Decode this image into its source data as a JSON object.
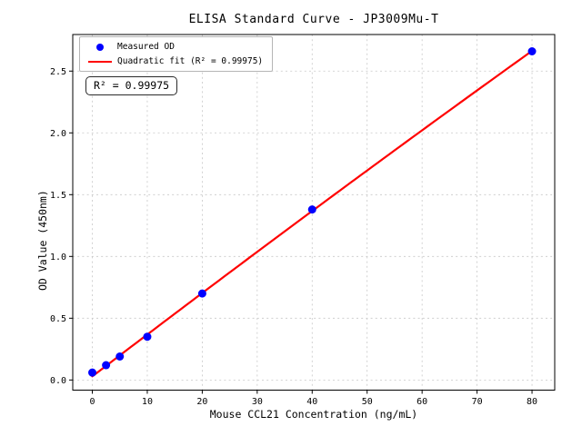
{
  "chart": {
    "title": "ELISA Standard Curve - JP3009Mu-T",
    "xlabel": "Mouse CCL21 Concentration (ng/mL)",
    "ylabel": "OD Value (450nm)",
    "annotation": "R² = 0.99975",
    "legend": {
      "position": "upper left",
      "entries": [
        {
          "label": "Measured OD",
          "marker": "dot",
          "color": "#0000ff"
        },
        {
          "label": "Quadratic fit (R² = 0.99975)",
          "marker": "line",
          "color": "#ff0000"
        }
      ]
    }
  },
  "chart_data": {
    "type": "scatter",
    "title": "ELISA Standard Curve - JP3009Mu-T",
    "xlabel": "Mouse CCL21 Concentration (ng/mL)",
    "ylabel": "OD Value (450nm)",
    "xlim": [
      -3.56,
      84.13
    ],
    "ylim": [
      -0.082,
      2.796
    ],
    "x_ticks": [
      0,
      10,
      20,
      30,
      40,
      50,
      60,
      70,
      80
    ],
    "x_tick_labels": [
      "0",
      "10",
      "20",
      "30",
      "40",
      "50",
      "60",
      "70",
      "80"
    ],
    "y_ticks": [
      0.0,
      0.5,
      1.0,
      1.5,
      2.0,
      2.5
    ],
    "y_tick_labels": [
      "0.0",
      "0.5",
      "1.0",
      "1.5",
      "2.0",
      "2.5"
    ],
    "grid": true,
    "series": [
      {
        "name": "Measured OD",
        "type": "scatter",
        "color": "#0000ff",
        "points": [
          {
            "x": 0,
            "y": 0.06
          },
          {
            "x": 2.5,
            "y": 0.12
          },
          {
            "x": 5,
            "y": 0.19
          },
          {
            "x": 10,
            "y": 0.35
          },
          {
            "x": 20,
            "y": 0.7
          },
          {
            "x": 40,
            "y": 1.38
          },
          {
            "x": 80,
            "y": 2.66
          }
        ]
      },
      {
        "name": "Quadratic fit (R² = 0.99975)",
        "type": "fit-line",
        "color": "#ff0000",
        "fit": "quadratic",
        "r_squared": 0.99975,
        "coefficients": {
          "a": -1.31e-05,
          "b": 0.03397,
          "c": 0.0297
        },
        "x_range": [
          0,
          80
        ]
      }
    ],
    "annotation": "R² = 0.99975",
    "colors": {
      "grid": "#c7c7c7",
      "spine": "#000000",
      "background": "#ffffff"
    }
  }
}
